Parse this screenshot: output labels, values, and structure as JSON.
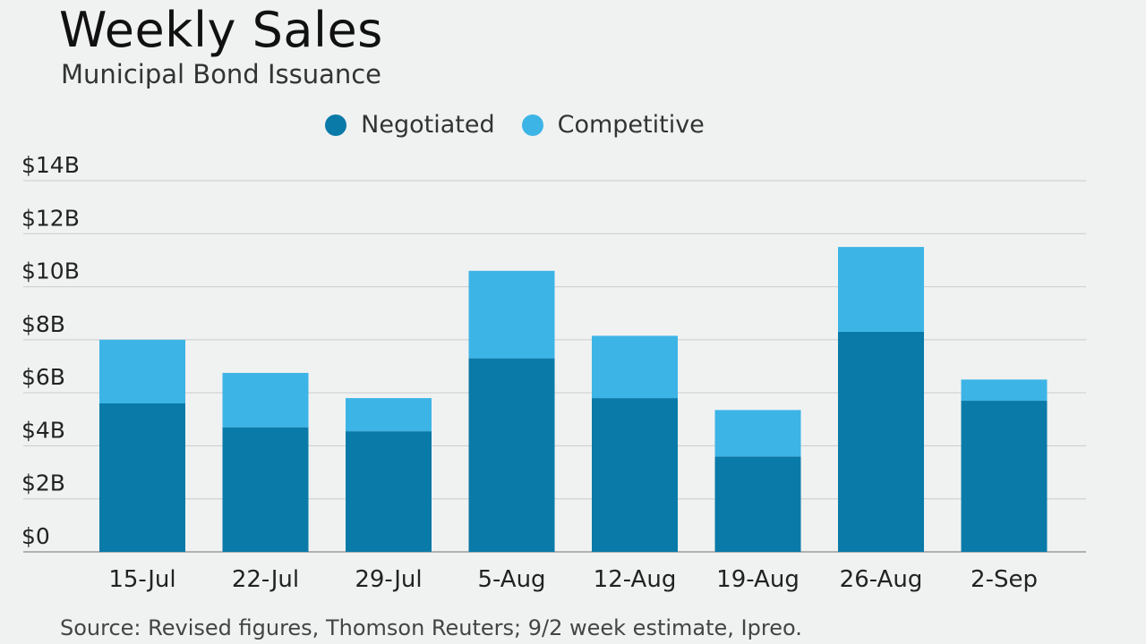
{
  "header": {
    "title": "Weekly Sales",
    "subtitle": "Municipal Bond Issuance"
  },
  "footer": {
    "source": "Source: Revised figures, Thomson Reuters; 9/2 week estimate, Ipreo."
  },
  "colors": {
    "negotiated": "#0a7aa8",
    "competitive": "#3db4e6",
    "grid": "#c9cccc",
    "axis": "#9a9d9d"
  },
  "chart_data": {
    "type": "bar",
    "stacked": true,
    "categories": [
      "15-Jul",
      "22-Jul",
      "29-Jul",
      "5-Aug",
      "12-Aug",
      "19-Aug",
      "26-Aug",
      "2-Sep"
    ],
    "series": [
      {
        "name": "Negotiated",
        "values": [
          5.6,
          4.7,
          4.55,
          7.3,
          5.8,
          3.6,
          8.3,
          5.7
        ]
      },
      {
        "name": "Competitive",
        "values": [
          2.4,
          2.05,
          1.25,
          3.3,
          2.35,
          1.75,
          3.2,
          0.8
        ]
      }
    ],
    "title": "Weekly Sales",
    "subtitle": "Municipal Bond Issuance",
    "xlabel": "",
    "ylabel": "",
    "ylim": [
      0,
      14
    ],
    "yticks": [
      0,
      2,
      4,
      6,
      8,
      10,
      12,
      14
    ],
    "ytick_labels": [
      "$0",
      "$2B",
      "$4B",
      "$6B",
      "$8B",
      "$10B",
      "$12B",
      "$14B"
    ],
    "grid": true,
    "legend_position": "top-center"
  }
}
